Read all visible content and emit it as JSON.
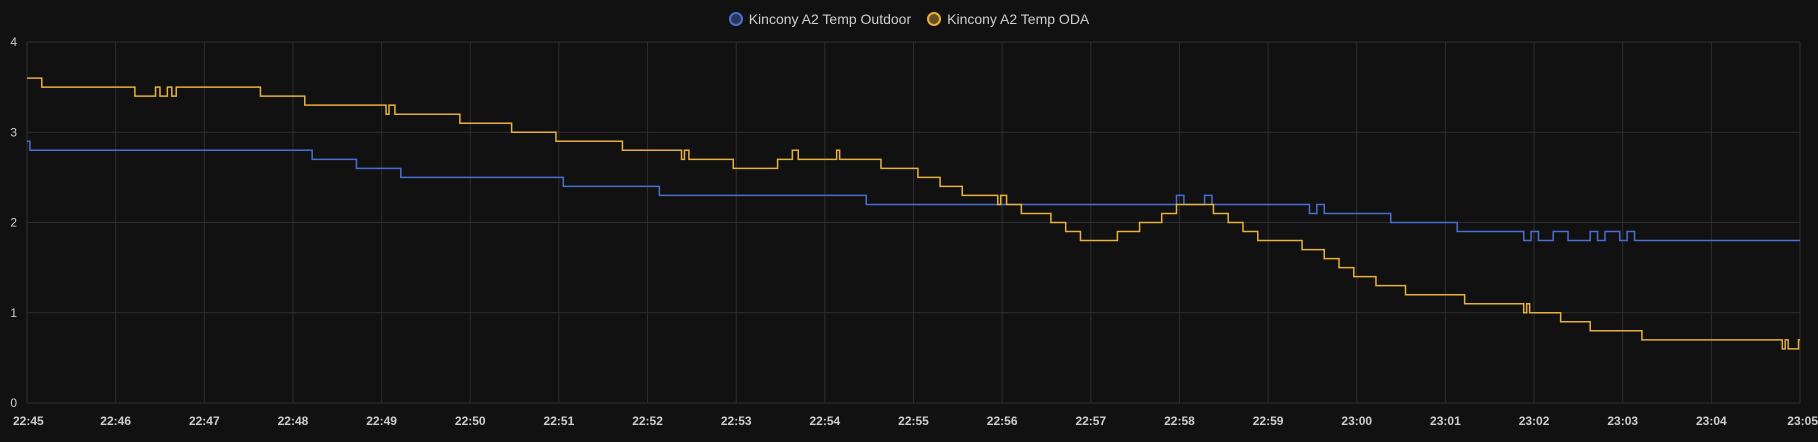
{
  "colors": {
    "background": "#111111",
    "grid": "#2e2e2e",
    "tick_text": "#cfcfcf"
  },
  "chart_data": {
    "type": "line",
    "step": true,
    "grid": true,
    "legend_position": "top-center",
    "title": "",
    "xlabel": "",
    "ylabel": "",
    "x_range": [
      "22:45",
      "23:05"
    ],
    "ylim": [
      0,
      4
    ],
    "y_ticks": [
      "0",
      "1",
      "2",
      "3",
      "4"
    ],
    "x_ticks": [
      "22:45",
      "22:46",
      "22:47",
      "22:48",
      "22:49",
      "22:50",
      "22:51",
      "22:52",
      "22:53",
      "22:54",
      "22:55",
      "22:56",
      "22:57",
      "22:58",
      "22:59",
      "23:00",
      "23:01",
      "23:02",
      "23:03",
      "23:04",
      "23:05"
    ],
    "series": [
      {
        "name": "Kincony A2 Temp Outdoor",
        "color": "#4a6fd1",
        "points": [
          [
            "22:45:00",
            2.9
          ],
          [
            "22:45:02",
            2.8
          ],
          [
            "22:48:13",
            2.7
          ],
          [
            "22:48:43",
            2.6
          ],
          [
            "22:49:13",
            2.5
          ],
          [
            "22:51:03",
            2.4
          ],
          [
            "22:52:08",
            2.3
          ],
          [
            "22:54:28",
            2.2
          ],
          [
            "22:57:58",
            2.3
          ],
          [
            "22:58:03",
            2.2
          ],
          [
            "22:58:17",
            2.3
          ],
          [
            "22:58:22",
            2.2
          ],
          [
            "22:59:28",
            2.1
          ],
          [
            "22:59:33",
            2.2
          ],
          [
            "22:59:38",
            2.1
          ],
          [
            "23:00:23",
            2.0
          ],
          [
            "23:01:08",
            1.9
          ],
          [
            "23:01:53",
            1.8
          ],
          [
            "23:01:58",
            1.9
          ],
          [
            "23:02:03",
            1.8
          ],
          [
            "23:02:13",
            1.9
          ],
          [
            "23:02:23",
            1.8
          ],
          [
            "23:02:38",
            1.9
          ],
          [
            "23:02:43",
            1.8
          ],
          [
            "23:02:48",
            1.9
          ],
          [
            "23:02:58",
            1.8
          ],
          [
            "23:03:03",
            1.9
          ],
          [
            "23:03:08",
            1.8
          ],
          [
            "23:05:00",
            1.8
          ]
        ]
      },
      {
        "name": "Kincony A2 Temp ODA",
        "color": "#e8b03d",
        "points": [
          [
            "22:45:00",
            3.6
          ],
          [
            "22:45:10",
            3.5
          ],
          [
            "22:46:13",
            3.4
          ],
          [
            "22:46:27",
            3.5
          ],
          [
            "22:46:30",
            3.4
          ],
          [
            "22:46:35",
            3.5
          ],
          [
            "22:46:38",
            3.4
          ],
          [
            "22:46:41",
            3.5
          ],
          [
            "22:47:38",
            3.4
          ],
          [
            "22:48:08",
            3.3
          ],
          [
            "22:49:03",
            3.2
          ],
          [
            "22:49:05",
            3.3
          ],
          [
            "22:49:09",
            3.2
          ],
          [
            "22:49:53",
            3.1
          ],
          [
            "22:50:28",
            3.0
          ],
          [
            "22:50:58",
            2.9
          ],
          [
            "22:51:43",
            2.8
          ],
          [
            "22:52:23",
            2.7
          ],
          [
            "22:52:25",
            2.8
          ],
          [
            "22:52:28",
            2.7
          ],
          [
            "22:52:58",
            2.6
          ],
          [
            "22:53:28",
            2.7
          ],
          [
            "22:53:38",
            2.8
          ],
          [
            "22:53:42",
            2.7
          ],
          [
            "22:54:08",
            2.8
          ],
          [
            "22:54:10",
            2.7
          ],
          [
            "22:54:38",
            2.6
          ],
          [
            "22:55:03",
            2.5
          ],
          [
            "22:55:18",
            2.4
          ],
          [
            "22:55:33",
            2.3
          ],
          [
            "22:55:57",
            2.2
          ],
          [
            "22:55:59",
            2.3
          ],
          [
            "22:56:03",
            2.2
          ],
          [
            "22:56:13",
            2.1
          ],
          [
            "22:56:33",
            2.0
          ],
          [
            "22:56:43",
            1.9
          ],
          [
            "22:56:53",
            1.8
          ],
          [
            "22:57:18",
            1.9
          ],
          [
            "22:57:33",
            2.0
          ],
          [
            "22:57:48",
            2.1
          ],
          [
            "22:57:58",
            2.2
          ],
          [
            "22:58:23",
            2.1
          ],
          [
            "22:58:33",
            2.0
          ],
          [
            "22:58:43",
            1.9
          ],
          [
            "22:58:53",
            1.8
          ],
          [
            "22:59:23",
            1.7
          ],
          [
            "22:59:38",
            1.6
          ],
          [
            "22:59:48",
            1.5
          ],
          [
            "22:59:58",
            1.4
          ],
          [
            "23:00:13",
            1.3
          ],
          [
            "23:00:33",
            1.2
          ],
          [
            "23:01:13",
            1.1
          ],
          [
            "23:01:53",
            1.0
          ],
          [
            "23:01:55",
            1.1
          ],
          [
            "23:01:57",
            1.0
          ],
          [
            "23:02:18",
            0.9
          ],
          [
            "23:02:38",
            0.8
          ],
          [
            "23:03:13",
            0.7
          ],
          [
            "23:04:48",
            0.6
          ],
          [
            "23:04:50",
            0.7
          ],
          [
            "23:04:52",
            0.6
          ],
          [
            "23:04:59",
            0.7
          ],
          [
            "23:05:00",
            0.7
          ]
        ]
      }
    ]
  }
}
